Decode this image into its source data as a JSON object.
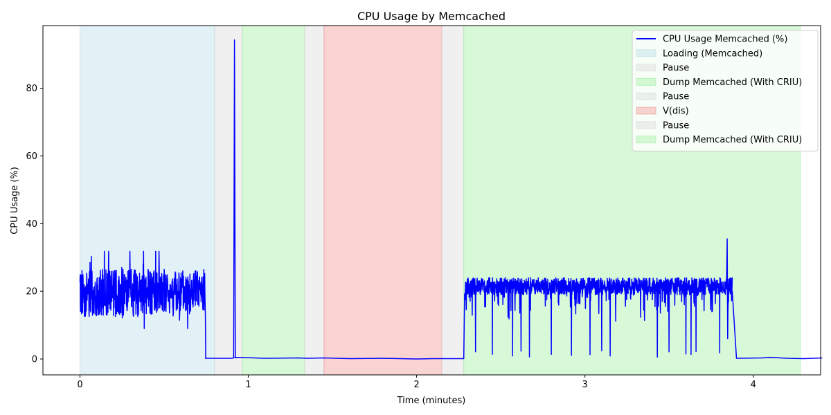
{
  "chart_data": {
    "type": "line",
    "title": "CPU Usage by Memcached",
    "xlabel": "Time (minutes)",
    "ylabel": "CPU Usage (%)",
    "xlim": [
      -0.22,
      4.4
    ],
    "ylim": [
      -4.7,
      98.5
    ],
    "x_ticks": [
      0,
      1,
      2,
      3,
      4
    ],
    "y_ticks": [
      0,
      20,
      40,
      60,
      80
    ],
    "grid": false,
    "legend_position": "top-right",
    "line_color": "#0000ff",
    "series": [
      {
        "name": "CPU Usage Memcached (%)",
        "baseline_segments": [
          {
            "x": [
              0.745,
              0.9,
              0.92,
              0.98,
              1.1,
              1.3,
              1.35,
              1.45,
              1.6,
              1.8,
              2.0,
              2.1,
              2.28
            ],
            "y": [
              0.2,
              0.2,
              0.5,
              0.4,
              0.2,
              0.3,
              0.2,
              0.3,
              0.1,
              0.2,
              0.0,
              0.1,
              0.1
            ]
          },
          {
            "x": [
              3.9,
              4.05,
              4.1,
              4.2,
              4.3,
              4.41
            ],
            "y": [
              0.2,
              0.3,
              0.5,
              0.2,
              0.1,
              0.3
            ]
          }
        ],
        "spikes": [
          {
            "x": 0.918,
            "y": 94.3
          },
          {
            "x": 3.845,
            "y": 35.5
          }
        ],
        "active_periods": [
          {
            "start": 0.0,
            "end": 0.745,
            "mean": 19.5,
            "min": 9.0,
            "max": 31.8
          },
          {
            "start": 2.285,
            "end": 3.875,
            "mean": 21.5,
            "min": 0.3,
            "max": 27.0
          }
        ],
        "dropouts": [
          2.35,
          2.45,
          2.57,
          2.62,
          2.67,
          2.8,
          2.92,
          3.03,
          3.1,
          3.15,
          3.43,
          3.5,
          3.6,
          3.63,
          3.66,
          3.8
        ]
      }
    ],
    "phases": [
      {
        "label": "Loading (Memcached)",
        "start": 0.0,
        "end": 0.8,
        "color": "#add8e6"
      },
      {
        "label": "Pause",
        "start": 0.8,
        "end": 0.965,
        "color": "#d3d3d3"
      },
      {
        "label": "Dump Memcached (With CRIU)",
        "start": 0.965,
        "end": 1.335,
        "color": "#90ee90"
      },
      {
        "label": "Pause",
        "start": 1.335,
        "end": 1.45,
        "color": "#d3d3d3"
      },
      {
        "label": "V(dis)",
        "start": 1.45,
        "end": 2.15,
        "color": "#f08080"
      },
      {
        "label": "Pause",
        "start": 2.15,
        "end": 2.28,
        "color": "#d3d3d3"
      },
      {
        "label": "Dump Memcached (With CRIU)",
        "start": 2.28,
        "end": 4.28,
        "color": "#90ee90"
      }
    ]
  }
}
